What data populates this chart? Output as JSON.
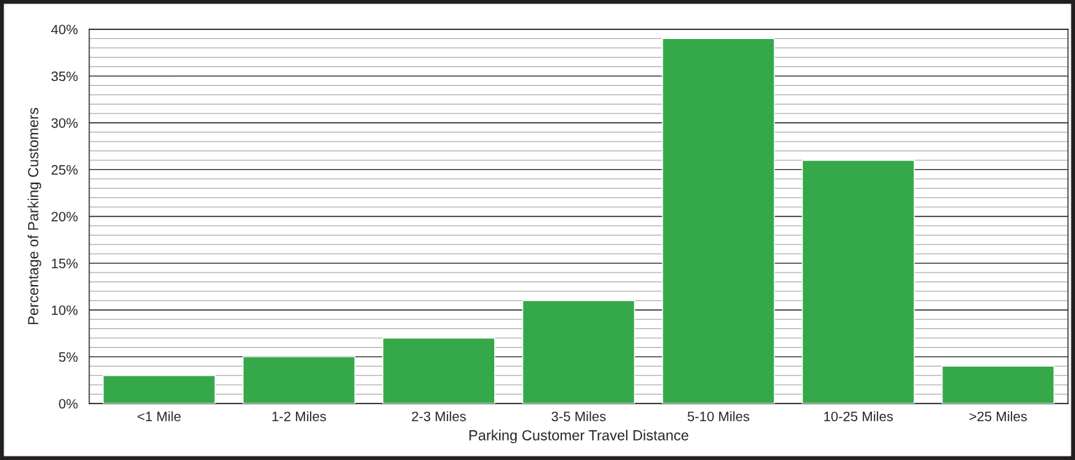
{
  "chart_data": {
    "type": "bar",
    "categories": [
      "<1 Mile",
      "1-2 Miles",
      "2-3 Miles",
      "3-5 Miles",
      "5-10 Miles",
      "10-25 Miles",
      ">25 Miles"
    ],
    "values": [
      3,
      5,
      7,
      11,
      39,
      26,
      4
    ],
    "color": "#35a94a",
    "xlabel": "Parking Customer Travel Distance",
    "ylabel": "Percentage of Parking Customers",
    "ylim": [
      0,
      40
    ],
    "yticks": [
      {
        "value": 0,
        "label": "0%"
      },
      {
        "value": 1,
        "label": null
      },
      {
        "value": 2,
        "label": null
      },
      {
        "value": 3,
        "label": null
      },
      {
        "value": 4,
        "label": null
      },
      {
        "value": 5,
        "label": "5%"
      },
      {
        "value": 6,
        "label": null
      },
      {
        "value": 7,
        "label": null
      },
      {
        "value": 8,
        "label": null
      },
      {
        "value": 9,
        "label": null
      },
      {
        "value": 10,
        "label": "10%"
      },
      {
        "value": 11,
        "label": null
      },
      {
        "value": 12,
        "label": null
      },
      {
        "value": 13,
        "label": null
      },
      {
        "value": 14,
        "label": null
      },
      {
        "value": 15,
        "label": "15%"
      },
      {
        "value": 16,
        "label": null
      },
      {
        "value": 17,
        "label": null
      },
      {
        "value": 18,
        "label": null
      },
      {
        "value": 19,
        "label": null
      },
      {
        "value": 20,
        "label": "20%"
      },
      {
        "value": 21,
        "label": null
      },
      {
        "value": 22,
        "label": null
      },
      {
        "value": 23,
        "label": null
      },
      {
        "value": 24,
        "label": null
      },
      {
        "value": 25,
        "label": "25%"
      },
      {
        "value": 26,
        "label": null
      },
      {
        "value": 27,
        "label": null
      },
      {
        "value": 28,
        "label": null
      },
      {
        "value": 29,
        "label": null
      },
      {
        "value": 30,
        "label": "30%"
      },
      {
        "value": 31,
        "label": null
      },
      {
        "value": 32,
        "label": null
      },
      {
        "value": 33,
        "label": null
      },
      {
        "value": 34,
        "label": null
      },
      {
        "value": 35,
        "label": "35%"
      },
      {
        "value": 36,
        "label": null
      },
      {
        "value": 37,
        "label": null
      },
      {
        "value": 38,
        "label": null
      },
      {
        "value": 39,
        "label": null
      },
      {
        "value": 40,
        "label": "40%"
      }
    ],
    "grid": "y"
  }
}
